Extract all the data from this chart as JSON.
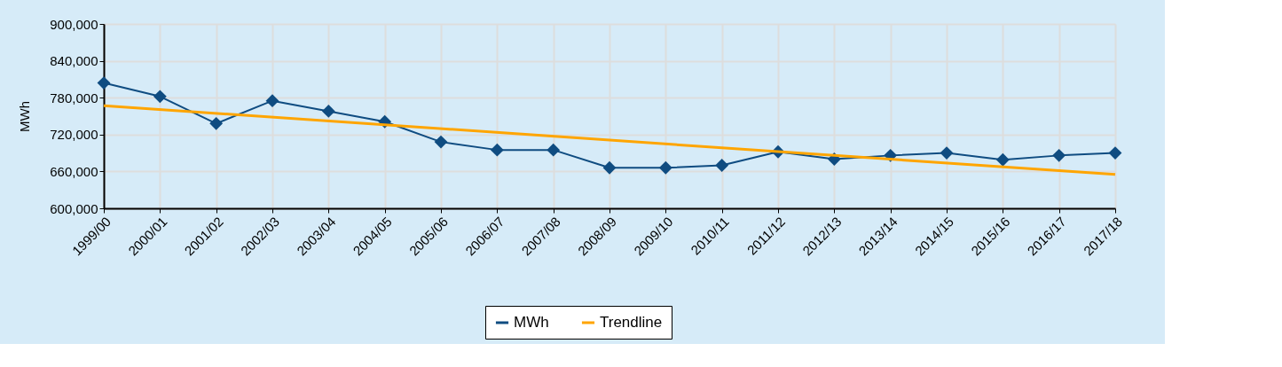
{
  "chart_data": {
    "type": "line",
    "ylabel": "MWh",
    "categories": [
      "1999/00",
      "2000/01",
      "2001/02",
      "2002/03",
      "2003/04",
      "2004/05",
      "2005/06",
      "2006/07",
      "2007/08",
      "2008/09",
      "2009/10",
      "2010/11",
      "2011/12",
      "2012/13",
      "2013/14",
      "2014/15",
      "2015/16",
      "2016/17",
      "2017/18"
    ],
    "series": [
      {
        "name": "MWh",
        "color": "#0f4c81",
        "marker": "diamond",
        "values": [
          804000,
          782000,
          738000,
          775000,
          758000,
          741000,
          708000,
          695000,
          695000,
          666000,
          666000,
          670000,
          692000,
          680000,
          686000,
          690000,
          679000,
          686000,
          690000
        ]
      },
      {
        "name": "Trendline",
        "type": "line",
        "color": "#ffa500",
        "marker": "none",
        "x": [
          "1999/00",
          "2017/18"
        ],
        "values": [
          767000,
          655000
        ]
      }
    ],
    "ylim": [
      600000,
      900000
    ],
    "yticks": [
      {
        "value": 600000,
        "label": "600,000"
      },
      {
        "value": 660000,
        "label": "660,000"
      },
      {
        "value": 720000,
        "label": "720,000"
      },
      {
        "value": 780000,
        "label": "780,000"
      },
      {
        "value": 840000,
        "label": "840,000"
      },
      {
        "value": 900000,
        "label": "900,000"
      }
    ],
    "grid": true,
    "legend": "bottom"
  }
}
